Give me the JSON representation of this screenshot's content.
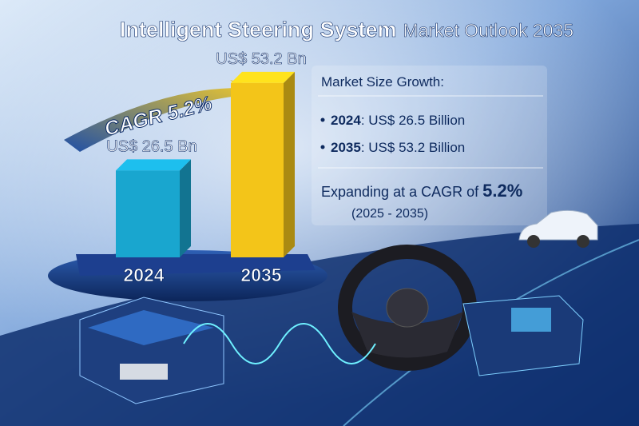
{
  "chart_data": {
    "type": "bar",
    "title": "Intelligent Steering System",
    "subtitle": "Market Outlook 2035",
    "categories": [
      "2024",
      "2035"
    ],
    "values": [
      26.5,
      53.2
    ],
    "value_labels": [
      "US$ 26.5 Bn",
      "US$ 53.2 Bn"
    ],
    "colors": [
      "#19a6cf",
      "#f3c519"
    ],
    "annotation": "CAGR 5.2%"
  },
  "summary": {
    "heading": "Market Size Growth:",
    "items": [
      {
        "year": "2024",
        "text": ": US$ 26.5 Billion"
      },
      {
        "year": "2035",
        "text": ": US$ 53.2 Billion"
      }
    ],
    "cagr_phrase": "Expanding at a CAGR of ",
    "cagr_value": "5.2%",
    "period": "(2025 - 2035)"
  }
}
